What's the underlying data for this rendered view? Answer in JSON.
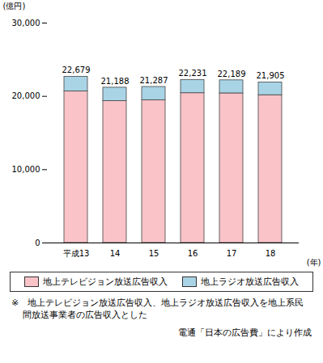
{
  "chart_data": {
    "type": "bar",
    "stacked": true,
    "categories": [
      "平成13",
      "14",
      "15",
      "16",
      "17",
      "18"
    ],
    "series": [
      {
        "name": "地上テレビジョン放送広告収入",
        "color": "#f9c3c8",
        "values": [
          20681,
          19351,
          19480,
          20436,
          20411,
          20161
        ]
      },
      {
        "name": "地上ラジオ放送広告収入",
        "color": "#a9d4e6",
        "values": [
          1998,
          1837,
          1807,
          1795,
          1778,
          1744
        ]
      }
    ],
    "totals": [
      22679,
      21188,
      21287,
      22231,
      22189,
      21905
    ],
    "total_labels": [
      "22,679",
      "21,188",
      "21,287",
      "22,231",
      "22,189",
      "21,905"
    ],
    "y_label": "(億円)",
    "x_label": "(年)",
    "ylim": [
      0,
      30000
    ],
    "yticks": [
      0,
      {
        "value": 10000,
        "label": "10,000"
      },
      {
        "value": 20000,
        "label": "20,000"
      },
      {
        "value": 30000,
        "label": "30,000"
      }
    ],
    "grid": false,
    "legend": "bottom",
    "note": "※　地上テレビジョン放送広告収入、地上ラジオ放送広告収入を地上系民間放送事業者の広告収入とした",
    "source": "電通「日本の広告費」により作成"
  }
}
